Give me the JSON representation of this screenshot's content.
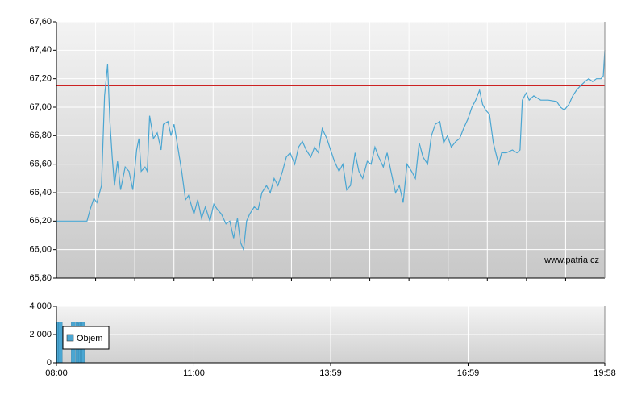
{
  "chart_data": [
    {
      "type": "line",
      "annotation": "www.patria.cz",
      "xlim": [
        "08:00",
        "19:58"
      ],
      "ylim": [
        65.8,
        67.6
      ],
      "yticks": [
        {
          "value": 65.8,
          "label": "65,80"
        },
        {
          "value": 66.0,
          "label": "66,00"
        },
        {
          "value": 66.2,
          "label": "66,20"
        },
        {
          "value": 66.4,
          "label": "66,40"
        },
        {
          "value": 66.6,
          "label": "66,60"
        },
        {
          "value": 66.8,
          "label": "66,80"
        },
        {
          "value": 67.0,
          "label": "67,00"
        },
        {
          "value": 67.2,
          "label": "67,20"
        },
        {
          "value": 67.4,
          "label": "67,40"
        },
        {
          "value": 67.6,
          "label": "67,60"
        }
      ],
      "grid": true,
      "reference_lines": [
        {
          "value": 67.15,
          "color": "#cc2222"
        }
      ],
      "series": [
        {
          "color": "#4aa6d2",
          "x": [
            "08:00",
            "08:40",
            "08:44",
            "08:49",
            "08:53",
            "08:59",
            "09:03",
            "09:07",
            "09:10",
            "09:13",
            "09:16",
            "09:20",
            "09:24",
            "09:30",
            "09:35",
            "09:40",
            "09:45",
            "09:48",
            "09:51",
            "09:56",
            "09:59",
            "10:02",
            "10:07",
            "10:12",
            "10:17",
            "10:20",
            "10:26",
            "10:30",
            "10:34",
            "10:38",
            "10:44",
            "10:49",
            "10:53",
            "11:00",
            "11:05",
            "11:10",
            "11:15",
            "11:21",
            "11:26",
            "11:31",
            "11:36",
            "11:42",
            "11:47",
            "11:52",
            "11:57",
            "12:01",
            "12:05",
            "12:09",
            "12:13",
            "12:19",
            "12:24",
            "12:29",
            "12:35",
            "12:40",
            "12:45",
            "12:50",
            "12:56",
            "13:01",
            "13:06",
            "13:12",
            "13:17",
            "13:22",
            "13:27",
            "13:33",
            "13:38",
            "13:43",
            "13:48",
            "13:54",
            "13:59",
            "14:04",
            "14:10",
            "14:15",
            "14:20",
            "14:25",
            "14:31",
            "14:36",
            "14:41",
            "14:47",
            "14:52",
            "14:57",
            "15:02",
            "15:08",
            "15:13",
            "15:18",
            "15:24",
            "15:29",
            "15:34",
            "15:39",
            "15:45",
            "15:50",
            "15:55",
            "16:00",
            "16:06",
            "16:11",
            "16:16",
            "16:22",
            "16:27",
            "16:32",
            "16:37",
            "16:43",
            "16:48",
            "16:53",
            "16:59",
            "17:04",
            "17:09",
            "17:14",
            "17:18",
            "17:22",
            "17:27",
            "17:32",
            "17:39",
            "17:43",
            "17:49",
            "17:57",
            "18:03",
            "18:07",
            "18:10",
            "18:15",
            "18:19",
            "18:25",
            "18:34",
            "18:44",
            "18:55",
            "19:00",
            "19:05",
            "19:11",
            "19:16",
            "19:21",
            "19:26",
            "19:32",
            "19:37",
            "19:42",
            "19:47",
            "19:53",
            "19:56",
            "19:58"
          ],
          "values": [
            66.2,
            66.2,
            66.28,
            66.36,
            66.33,
            66.45,
            67.08,
            67.3,
            66.9,
            66.65,
            66.45,
            66.62,
            66.42,
            66.58,
            66.55,
            66.42,
            66.7,
            66.78,
            66.55,
            66.58,
            66.55,
            66.94,
            66.78,
            66.82,
            66.7,
            66.88,
            66.9,
            66.8,
            66.88,
            66.75,
            66.55,
            66.35,
            66.38,
            66.25,
            66.35,
            66.22,
            66.3,
            66.2,
            66.32,
            66.28,
            66.25,
            66.18,
            66.2,
            66.08,
            66.22,
            66.05,
            66.0,
            66.2,
            66.25,
            66.3,
            66.28,
            66.4,
            66.45,
            66.4,
            66.5,
            66.45,
            66.55,
            66.65,
            66.68,
            66.6,
            66.72,
            66.76,
            66.7,
            66.65,
            66.72,
            66.68,
            66.85,
            66.78,
            66.7,
            66.62,
            66.55,
            66.6,
            66.42,
            66.45,
            66.68,
            66.55,
            66.5,
            66.62,
            66.6,
            66.72,
            66.65,
            66.58,
            66.68,
            66.55,
            66.4,
            66.45,
            66.33,
            66.6,
            66.55,
            66.5,
            66.75,
            66.65,
            66.6,
            66.8,
            66.88,
            66.9,
            66.75,
            66.8,
            66.72,
            66.76,
            66.78,
            66.85,
            66.92,
            67.0,
            67.05,
            67.12,
            67.02,
            66.98,
            66.95,
            66.75,
            66.6,
            66.68,
            66.68,
            66.7,
            66.68,
            66.7,
            67.05,
            67.1,
            67.05,
            67.08,
            67.05,
            67.05,
            67.04,
            67.0,
            66.98,
            67.02,
            67.08,
            67.12,
            67.15,
            67.18,
            67.2,
            67.18,
            67.2,
            67.2,
            67.22,
            67.4
          ]
        }
      ]
    },
    {
      "type": "bar",
      "xlim": [
        "08:00",
        "19:58"
      ],
      "xticks": [
        "08:00",
        "11:00",
        "13:59",
        "16:59",
        "19:58"
      ],
      "ylim": [
        0,
        4000
      ],
      "yticks": [
        0,
        {
          "value": 2000,
          "label": "2 000"
        },
        {
          "value": 4000,
          "label": "4 000"
        }
      ],
      "grid": true,
      "x": [
        "08:02",
        "08:04",
        "08:06",
        "08:21",
        "08:23",
        "08:27",
        "08:29",
        "08:31",
        "08:33",
        "08:35"
      ],
      "series": [
        {
          "name": "Objem",
          "color": "#4aa6d2",
          "values": [
            2900,
            2900,
            2900,
            2900,
            2900,
            2900,
            2800,
            2900,
            2900,
            2900
          ]
        }
      ]
    }
  ]
}
